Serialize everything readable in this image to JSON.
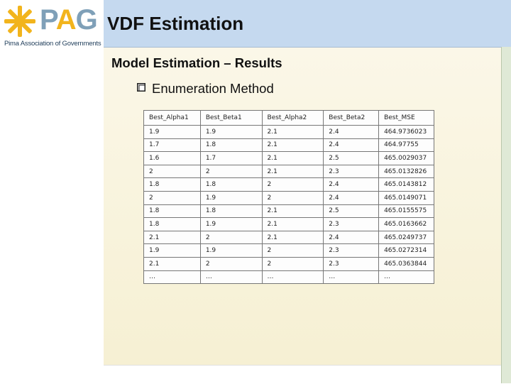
{
  "logo": {
    "letters": [
      "P",
      "A",
      "G"
    ],
    "tagline": "Pima Association of Governments",
    "colors": {
      "star": "#f2b41c",
      "p": "#7fa0b8",
      "a": "#f2b41c",
      "g": "#7fa0b8"
    }
  },
  "header": {
    "title": "VDF Estimation"
  },
  "main": {
    "subtitle": "Model Estimation – Results",
    "bullet_icon": "checkbox-bullet-icon",
    "bullet_text": "Enumeration Method"
  },
  "table": {
    "headers": [
      "Best_Alpha1",
      "Best_Beta1",
      "Best_Alpha2",
      "Best_Beta2",
      "Best_MSE"
    ],
    "rows": [
      [
        "1.9",
        "1.9",
        "2.1",
        "2.4",
        "464.9736023"
      ],
      [
        "1.7",
        "1.8",
        "2.1",
        "2.4",
        "464.97755"
      ],
      [
        "1.6",
        "1.7",
        "2.1",
        "2.5",
        "465.0029037"
      ],
      [
        "2",
        "2",
        "2.1",
        "2.3",
        "465.0132826"
      ],
      [
        "1.8",
        "1.8",
        "2",
        "2.4",
        "465.0143812"
      ],
      [
        "2",
        "1.9",
        "2",
        "2.4",
        "465.0149071"
      ],
      [
        "1.8",
        "1.8",
        "2.1",
        "2.5",
        "465.0155575"
      ],
      [
        "1.8",
        "1.9",
        "2.1",
        "2.3",
        "465.0163662"
      ],
      [
        "2.1",
        "2",
        "2.1",
        "2.4",
        "465.0249737"
      ],
      [
        "1.9",
        "1.9",
        "2",
        "2.3",
        "465.0272314"
      ],
      [
        "2.1",
        "2",
        "2",
        "2.3",
        "465.0363844"
      ],
      [
        "…",
        "…",
        "…",
        "…",
        "…"
      ]
    ]
  }
}
